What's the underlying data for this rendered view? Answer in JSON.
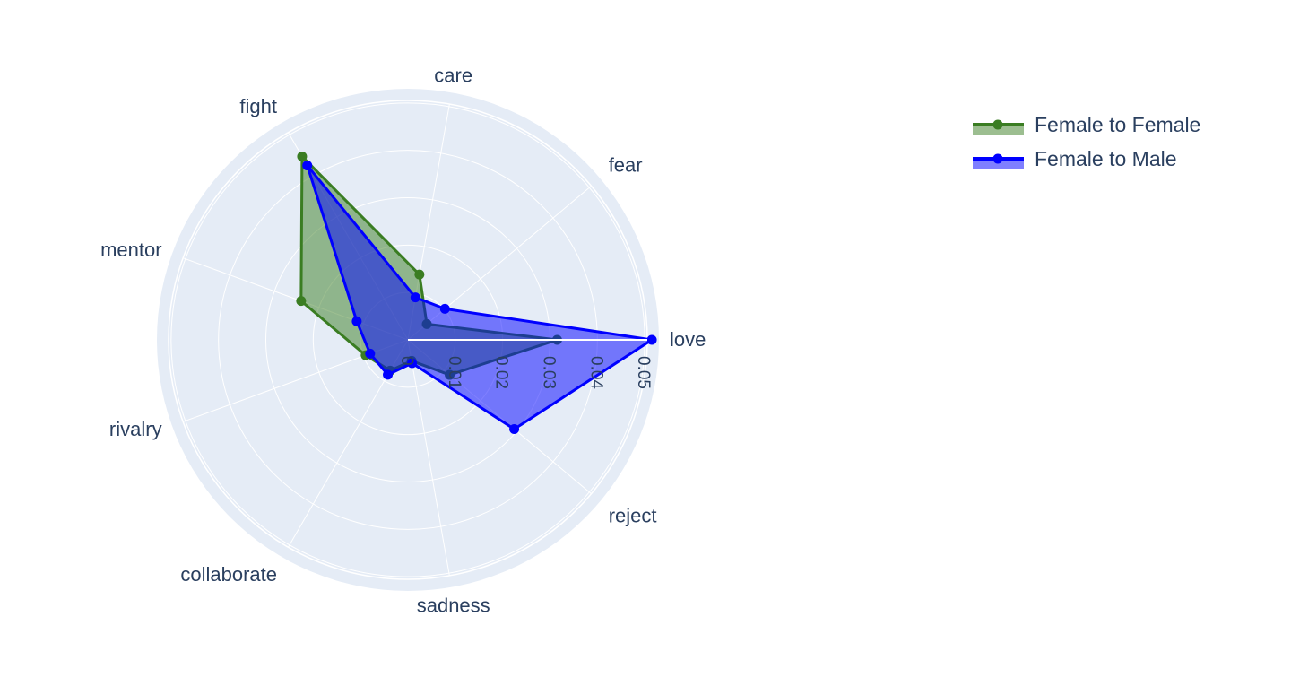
{
  "chart_data": {
    "type": "radar",
    "categories": [
      "love",
      "fear",
      "care",
      "fight",
      "mentor",
      "rivalry",
      "collaborate",
      "sadness",
      "reject"
    ],
    "radial_range": [
      0,
      0.053
    ],
    "radial_ticks": [
      {
        "value": 0,
        "label": "0"
      },
      {
        "value": 0.01,
        "label": "0.01"
      },
      {
        "value": 0.02,
        "label": "0.02"
      },
      {
        "value": 0.03,
        "label": "0.03"
      },
      {
        "value": 0.04,
        "label": "0.04"
      },
      {
        "value": 0.05,
        "label": "0.05"
      }
    ],
    "grid": true,
    "legend_position": "top-right",
    "series": [
      {
        "name": "Female to Female",
        "color": "#3a7d22",
        "fill": "rgba(58,125,34,0.5)",
        "values": [
          0.0315,
          0.0052,
          0.014,
          0.0447,
          0.024,
          0.0095,
          0.0075,
          0.0045,
          0.0115
        ]
      },
      {
        "name": "Female to Male",
        "color": "#0000ff",
        "fill": "rgba(0,0,255,0.5)",
        "values": [
          0.0515,
          0.0102,
          0.0091,
          0.0425,
          0.0115,
          0.0085,
          0.0085,
          0.005,
          0.0293
        ]
      }
    ]
  }
}
